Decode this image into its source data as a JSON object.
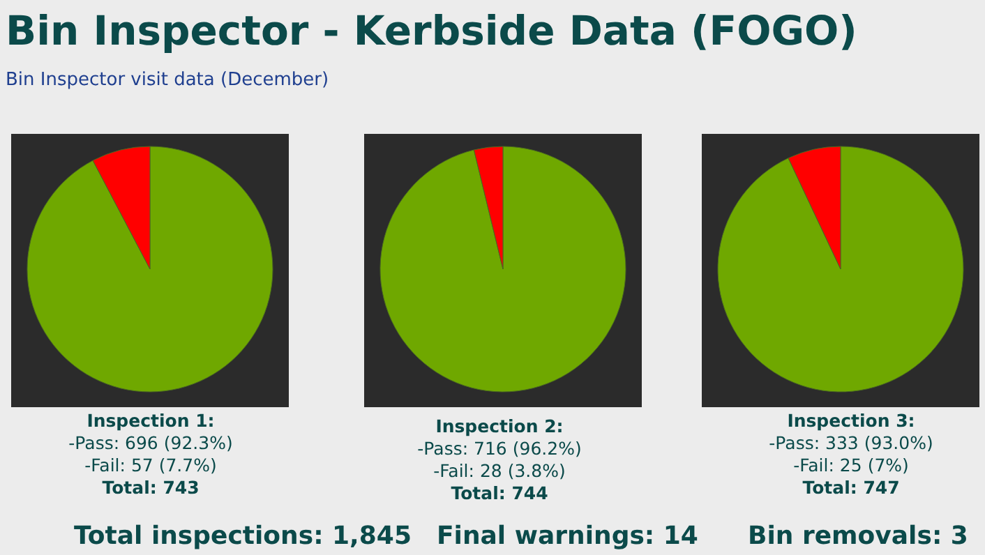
{
  "chart_data": [
    {
      "type": "pie",
      "title": "Bin Inspector - Kerbside Data (FOGO)",
      "subtitle": "Bin Inspector visit data (December)",
      "categories": [
        null,
        null
      ],
      "values": [
        92.3,
        7.7
      ],
      "colors": [
        "#6fa800",
        "#ff0000"
      ],
      "annotations": [
        "Inspection 1:",
        "-Pass: 696 (92.3%)",
        "-Fail: 57 (7.7%)",
        "Total: 743"
      ]
    },
    {
      "type": "pie",
      "categories": [
        null,
        null
      ],
      "values": [
        96.2,
        3.8
      ],
      "colors": [
        "#6fa800",
        "#ff0000"
      ],
      "annotations": [
        "Inspection 2:",
        "-Pass: 716 (96.2%)",
        "-Fail: 28 (3.8%)",
        "Total: 744"
      ]
    },
    {
      "type": "pie",
      "categories": [
        null,
        null
      ],
      "values": [
        93.0,
        7.0
      ],
      "colors": [
        "#6fa800",
        "#ff0000"
      ],
      "annotations": [
        "Inspection 3:",
        "-Pass: 333 (93.0%)",
        "-Fail: 25 (7%)",
        "Total: 747"
      ]
    },
    {
      "type": "other",
      "annotations": [
        "Total inspections: 1,845",
        "Final warnings: 14",
        "Bin removals: 3"
      ]
    }
  ]
}
